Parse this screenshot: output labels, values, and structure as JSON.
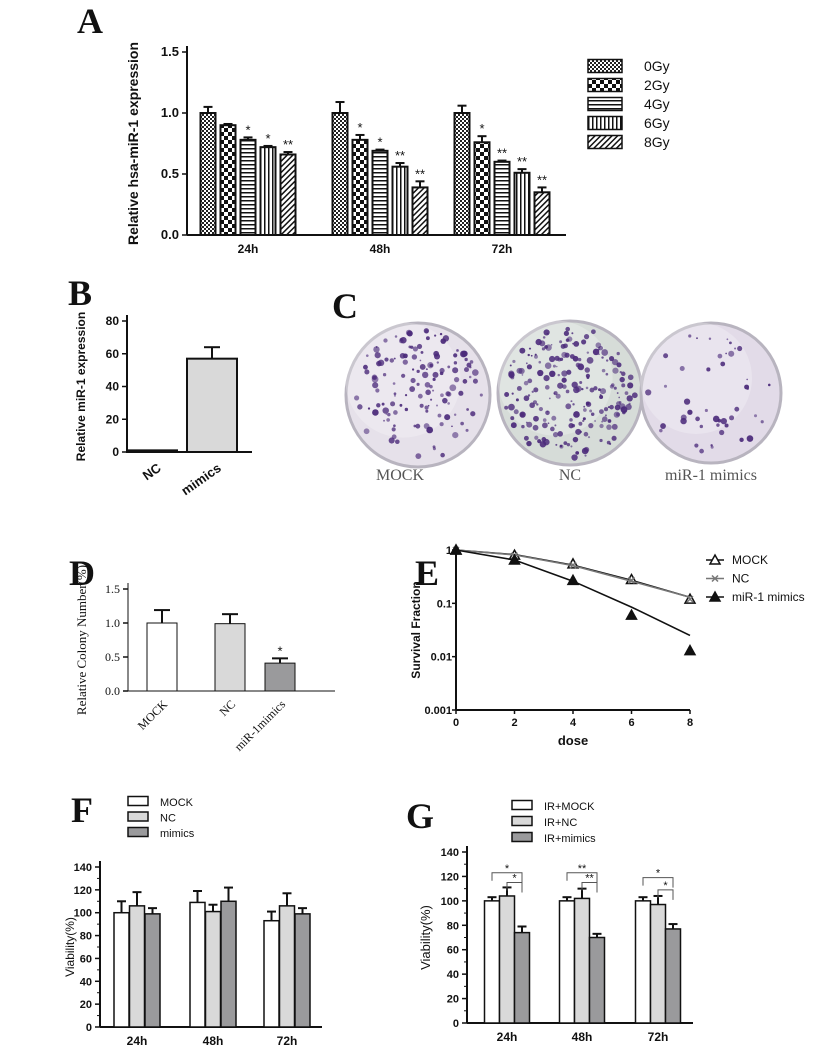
{
  "panel_labels": {
    "A": "A",
    "B": "B",
    "C": "C",
    "D": "D",
    "E": "E",
    "F": "F",
    "G": "G"
  },
  "colors": {
    "axis": "#111111",
    "white_bar": "#ffffff",
    "light_bar": "#d9d9d9",
    "dark_bar": "#9a9a9c",
    "plate_bg": "#e4e2ea",
    "colony": "#4b2a7a"
  },
  "chart_data": [
    {
      "id": "A",
      "type": "bar",
      "ylabel": "Relative hsa-miR-1 expression",
      "xlabel": "",
      "ylim": [
        0,
        1.5
      ],
      "yticks": [
        "0.0",
        "0.5",
        "1.0",
        "1.5"
      ],
      "categories": [
        "24h",
        "48h",
        "72h"
      ],
      "series": [
        {
          "name": "0Gy",
          "values": [
            1.0,
            1.0,
            1.0
          ],
          "errors": [
            0.05,
            0.09,
            0.06
          ],
          "sig": [
            "",
            "",
            ""
          ]
        },
        {
          "name": "2Gy",
          "values": [
            0.9,
            0.78,
            0.76
          ],
          "errors": [
            0.01,
            0.04,
            0.05
          ],
          "sig": [
            "",
            "*",
            "*"
          ]
        },
        {
          "name": "4Gy",
          "values": [
            0.78,
            0.69,
            0.6
          ],
          "errors": [
            0.02,
            0.01,
            0.01
          ],
          "sig": [
            "*",
            "*",
            "**"
          ]
        },
        {
          "name": "6Gy",
          "values": [
            0.72,
            0.56,
            0.51
          ],
          "errors": [
            0.01,
            0.03,
            0.03
          ],
          "sig": [
            "*",
            "**",
            "**"
          ]
        },
        {
          "name": "8Gy",
          "values": [
            0.66,
            0.39,
            0.35
          ],
          "errors": [
            0.02,
            0.05,
            0.04
          ],
          "sig": [
            "**",
            "**",
            "**"
          ]
        }
      ],
      "legend": "right"
    },
    {
      "id": "B",
      "type": "bar",
      "ylabel": "Relative miR-1 expression",
      "ylim": [
        0,
        80
      ],
      "yticks": [
        "0",
        "20",
        "40",
        "60",
        "80"
      ],
      "categories": [
        "NC",
        "mimics"
      ],
      "values": [
        1,
        57
      ],
      "errors": [
        0,
        7
      ]
    },
    {
      "id": "D",
      "type": "bar",
      "ylabel": "Relative Colony Number(%)",
      "ylim": [
        0,
        1.5
      ],
      "yticks": [
        "0.0",
        "0.5",
        "1.0",
        "1.5"
      ],
      "categories": [
        "MOCK",
        "NC",
        "miR-1mimics"
      ],
      "values": [
        1.0,
        0.99,
        0.41
      ],
      "errors": [
        0.19,
        0.14,
        0.07
      ],
      "sig": [
        "",
        "",
        "*"
      ]
    },
    {
      "id": "E",
      "type": "line",
      "ylabel": "Survival Fraction",
      "xlabel": "dose",
      "yscale": "log",
      "ylim": [
        0.001,
        1
      ],
      "yticks": [
        "0.001",
        "0.01",
        "0.1",
        "1"
      ],
      "xlim": [
        0,
        8
      ],
      "xticks": [
        "0",
        "2",
        "4",
        "6",
        "8"
      ],
      "x": [
        0,
        2,
        4,
        6,
        8
      ],
      "series": [
        {
          "name": "MOCK",
          "marker": "open-triangle",
          "values": [
            1,
            0.8,
            0.55,
            0.28,
            0.12
          ],
          "fit": [
            1,
            0.82,
            0.52,
            0.27,
            0.13
          ]
        },
        {
          "name": "NC",
          "marker": "x",
          "values": [
            1,
            0.78,
            0.52,
            0.27,
            0.12
          ],
          "fit": [
            1,
            0.81,
            0.51,
            0.26,
            0.13
          ]
        },
        {
          "name": "miR-1 mimics",
          "marker": "filled-triangle",
          "values": [
            1,
            0.65,
            0.27,
            0.06,
            0.013
          ],
          "fit": [
            1,
            0.65,
            0.26,
            0.085,
            0.025
          ]
        }
      ],
      "legend": "right"
    },
    {
      "id": "F",
      "type": "bar",
      "ylabel": "Viability(%)",
      "ylim": [
        0,
        140
      ],
      "yticks": [
        "0",
        "20",
        "40",
        "60",
        "80",
        "100",
        "120",
        "140"
      ],
      "categories": [
        "24h",
        "48h",
        "72h"
      ],
      "series": [
        {
          "name": "MOCK",
          "values": [
            100,
            109,
            93
          ],
          "errors": [
            10,
            10,
            8
          ]
        },
        {
          "name": "NC",
          "values": [
            106,
            101,
            106
          ],
          "errors": [
            12,
            6,
            11
          ]
        },
        {
          "name": "mimics",
          "values": [
            99,
            110,
            99
          ],
          "errors": [
            5,
            12,
            5
          ]
        }
      ],
      "legend": "top"
    },
    {
      "id": "G",
      "type": "bar",
      "ylabel": "Viability(%)",
      "ylim": [
        0,
        140
      ],
      "yticks": [
        "0",
        "20",
        "40",
        "60",
        "80",
        "100",
        "120",
        "140"
      ],
      "categories": [
        "24h",
        "48h",
        "72h"
      ],
      "series": [
        {
          "name": "IR+MOCK",
          "values": [
            100,
            100,
            100
          ],
          "errors": [
            3,
            3,
            3
          ]
        },
        {
          "name": "IR+NC",
          "values": [
            104,
            102,
            97
          ],
          "errors": [
            7,
            8,
            7
          ]
        },
        {
          "name": "IR+mimics",
          "values": [
            74,
            70,
            77
          ],
          "errors": [
            5,
            3,
            4
          ]
        }
      ],
      "brackets": [
        {
          "group": 0,
          "from": 0,
          "to": 2,
          "level": 123,
          "label": "*"
        },
        {
          "group": 0,
          "from": 1,
          "to": 2,
          "level": 115,
          "label": "*"
        },
        {
          "group": 1,
          "from": 0,
          "to": 2,
          "level": 123,
          "label": "**"
        },
        {
          "group": 1,
          "from": 1,
          "to": 2,
          "level": 115,
          "label": "**"
        },
        {
          "group": 2,
          "from": 0,
          "to": 2,
          "level": 119,
          "label": "*"
        },
        {
          "group": 2,
          "from": 1,
          "to": 2,
          "level": 109,
          "label": "*"
        }
      ],
      "legend": "top"
    }
  ],
  "panel_C": {
    "plates": [
      "MOCK",
      "NC",
      "miR-1 mimics"
    ],
    "colony_density": [
      140,
      220,
      45
    ]
  }
}
